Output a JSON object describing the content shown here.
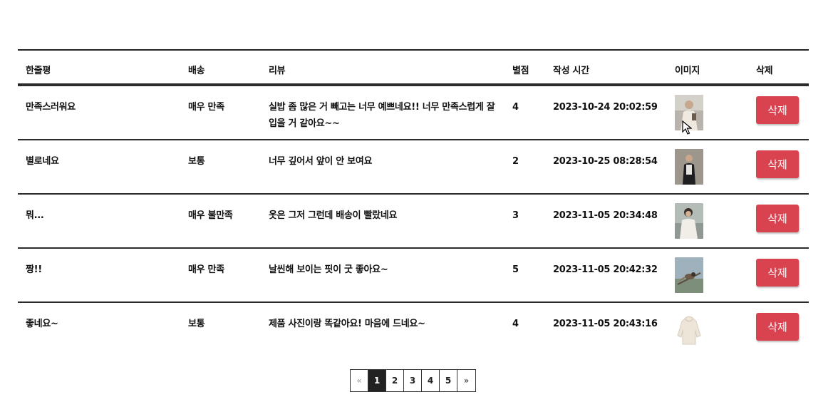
{
  "headers": {
    "title": "한줄평",
    "shipping": "배송",
    "review": "리뷰",
    "rating": "별점",
    "created": "작성 시간",
    "image": "이미지",
    "delete": "삭제"
  },
  "rows": [
    {
      "title": "만족스러워요",
      "shipping": "매우 만족",
      "review": "실밥 좀 많은 거 빼고는 너무 예쁘네요!! 너무 만족스럽게 잘 입을 거 같아요~~",
      "rating": "4",
      "created": "2023-10-24 20:02:59",
      "image_icon": "person-photo-thumbnail",
      "delete_label": "삭제"
    },
    {
      "title": "별로네요",
      "shipping": "보통",
      "review": "너무 깊어서 앞이 안 보여요",
      "rating": "2",
      "created": "2023-10-25 08:28:54",
      "image_icon": "person-photo-thumbnail",
      "delete_label": "삭제"
    },
    {
      "title": "뭐...",
      "shipping": "매우 불만족",
      "review": "옷은 그저 그런데 배송이 빨랐네요",
      "rating": "3",
      "created": "2023-11-05 20:34:48",
      "image_icon": "person-photo-thumbnail",
      "delete_label": "삭제"
    },
    {
      "title": "짱!!",
      "shipping": "매우 만족",
      "review": "날씬해 보이는 핏이 굿 좋아요~",
      "rating": "5",
      "created": "2023-11-05 20:42:32",
      "image_icon": "bird-photo-thumbnail",
      "delete_label": "삭제"
    },
    {
      "title": "좋네요~",
      "shipping": "보통",
      "review": "제품 사진이랑 똑같아요! 마음에 드네요~",
      "rating": "4",
      "created": "2023-11-05 20:43:16",
      "image_icon": "hoodie-photo-thumbnail",
      "delete_label": "삭제"
    }
  ],
  "pagination": {
    "prev": "«",
    "pages": [
      "1",
      "2",
      "3",
      "4",
      "5"
    ],
    "current": "1",
    "next": "»"
  },
  "colors": {
    "delete_button": "#d9434f",
    "border": "#2b2b2b",
    "active_page": "#222222"
  }
}
